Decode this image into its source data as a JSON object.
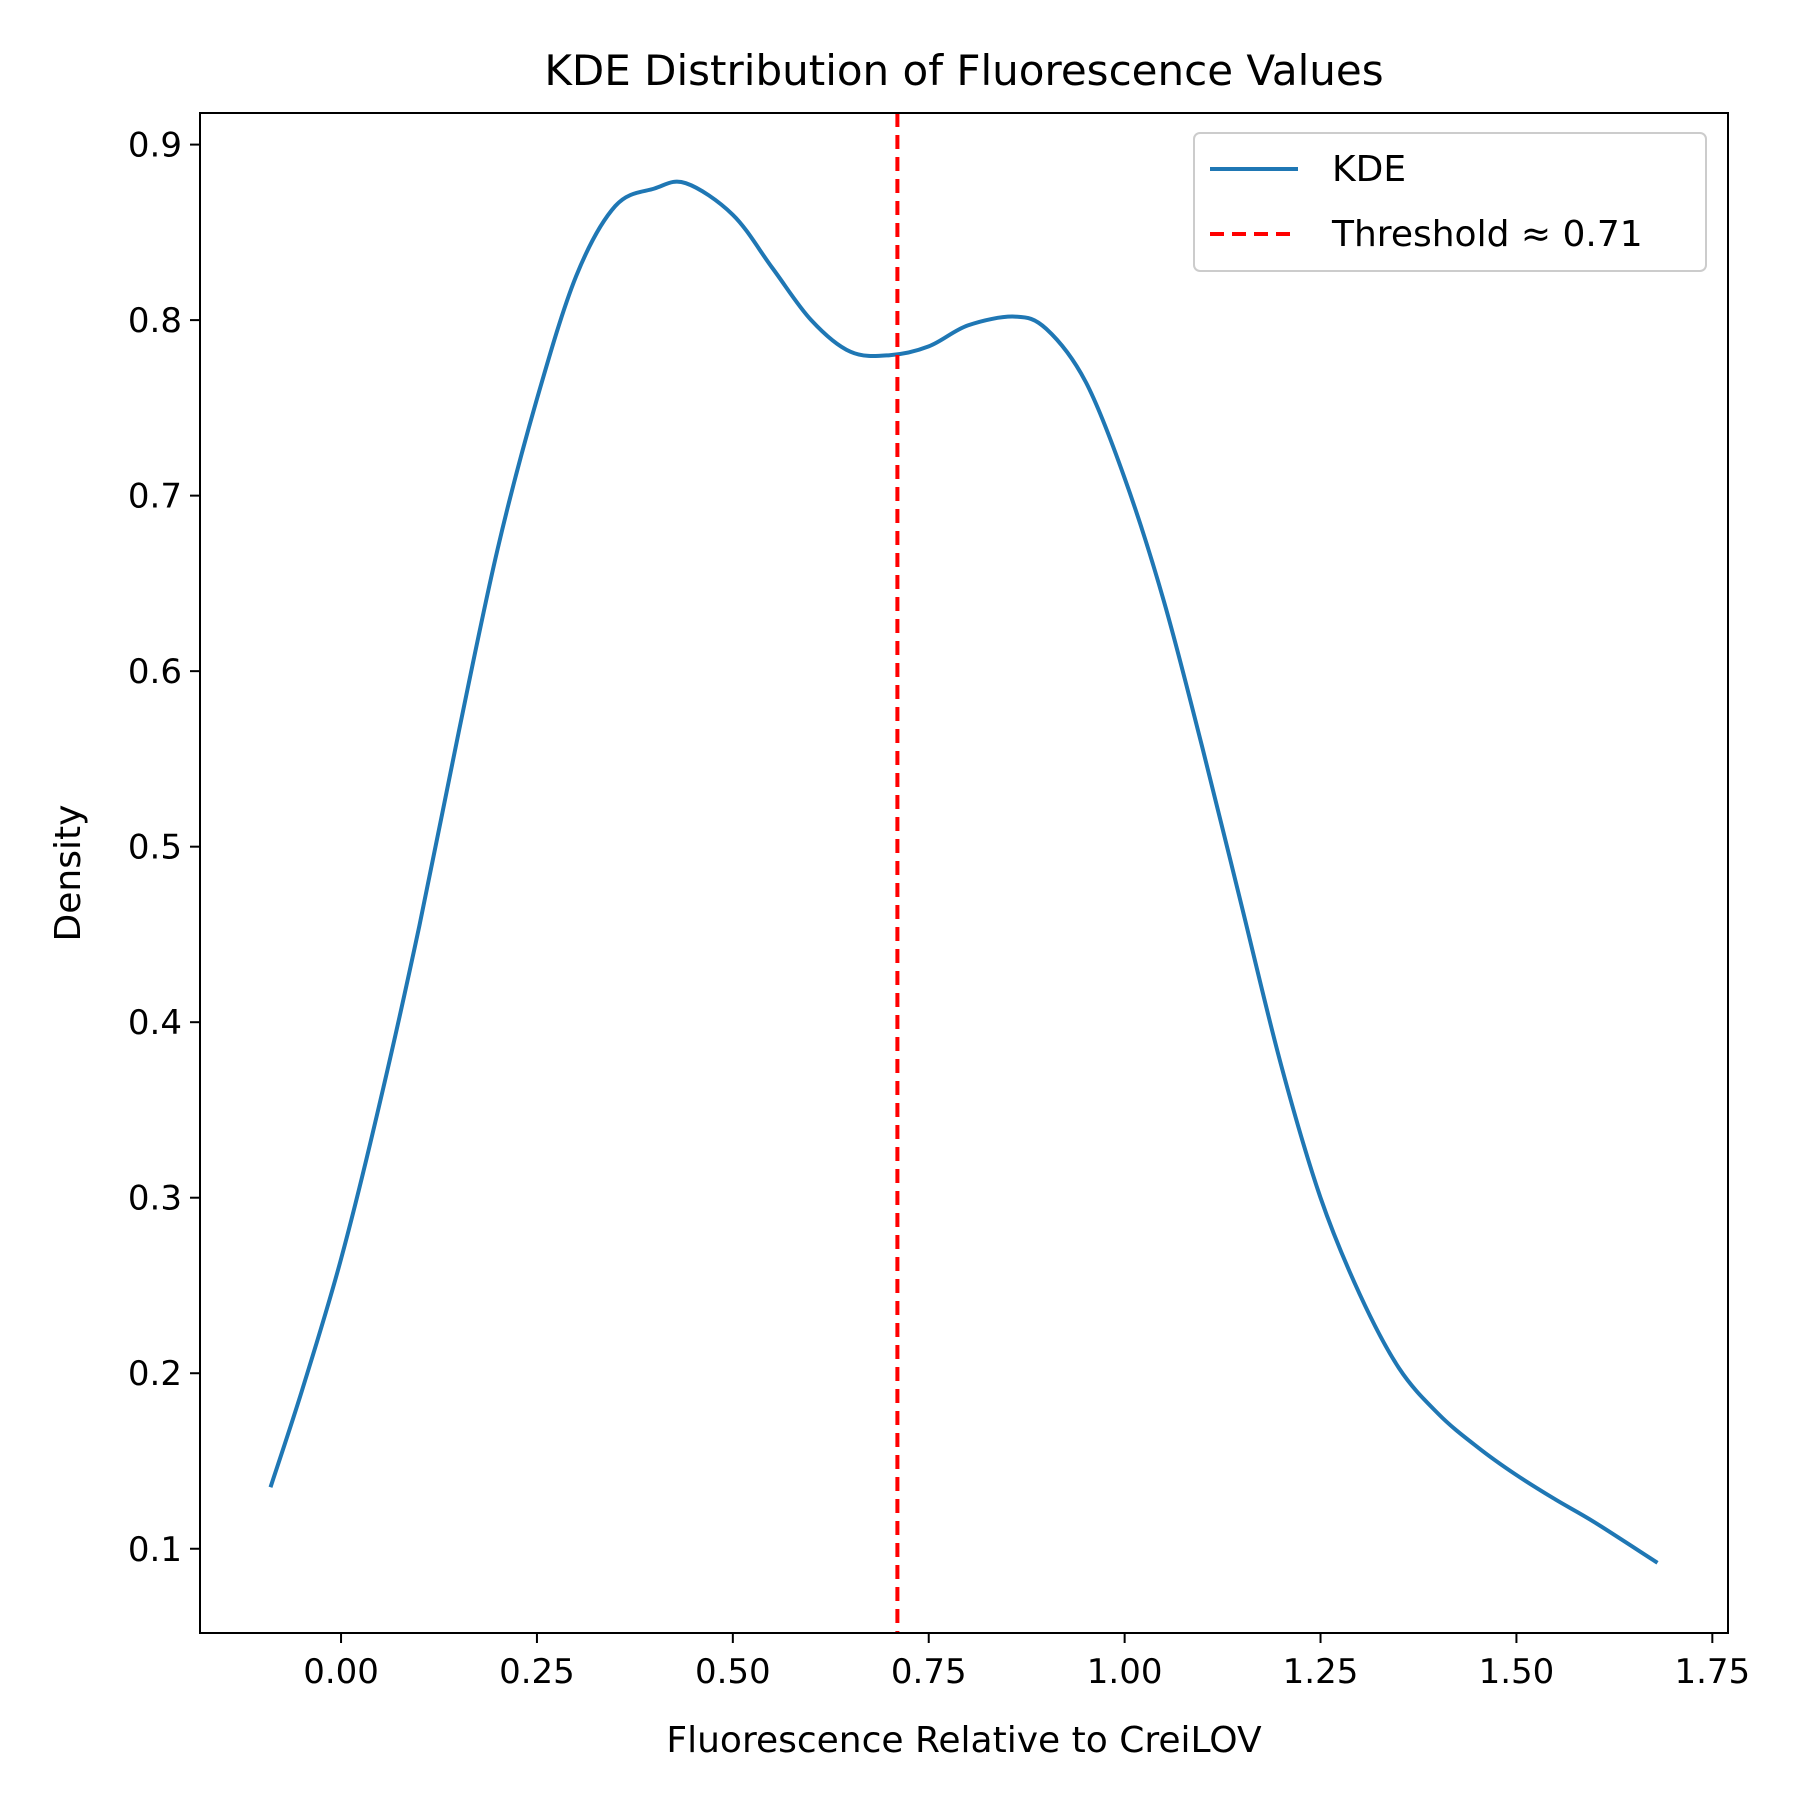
{
  "chart_data": {
    "type": "line",
    "title": "KDE Distribution of Fluorescence Values",
    "xlabel": "Fluorescence Relative to CreiLOV",
    "ylabel": "Density",
    "xlim": [
      -0.18,
      1.77
    ],
    "ylim": [
      0.052,
      0.918
    ],
    "xticks": [
      {
        "value": 0.0,
        "label": "0.00"
      },
      {
        "value": 0.25,
        "label": "0.25"
      },
      {
        "value": 0.5,
        "label": "0.50"
      },
      {
        "value": 0.75,
        "label": "0.75"
      },
      {
        "value": 1.0,
        "label": "1.00"
      },
      {
        "value": 1.25,
        "label": "1.25"
      },
      {
        "value": 1.5,
        "label": "1.50"
      },
      {
        "value": 1.75,
        "label": "1.75"
      }
    ],
    "yticks": [
      {
        "value": 0.1,
        "label": "0.1"
      },
      {
        "value": 0.2,
        "label": "0.2"
      },
      {
        "value": 0.3,
        "label": "0.3"
      },
      {
        "value": 0.4,
        "label": "0.4"
      },
      {
        "value": 0.5,
        "label": "0.5"
      },
      {
        "value": 0.6,
        "label": "0.6"
      },
      {
        "value": 0.7,
        "label": "0.7"
      },
      {
        "value": 0.8,
        "label": "0.8"
      },
      {
        "value": 0.9,
        "label": "0.9"
      }
    ],
    "grid": false,
    "legend_position": "top-right",
    "series": [
      {
        "name": "KDE",
        "color": "#1f77b4",
        "style": "solid",
        "x": [
          -0.09,
          -0.05,
          0.0,
          0.05,
          0.1,
          0.15,
          0.2,
          0.25,
          0.3,
          0.35,
          0.4,
          0.44,
          0.5,
          0.55,
          0.6,
          0.65,
          0.7,
          0.75,
          0.8,
          0.86,
          0.9,
          0.95,
          1.0,
          1.05,
          1.1,
          1.15,
          1.2,
          1.25,
          1.3,
          1.35,
          1.4,
          1.45,
          1.5,
          1.55,
          1.6,
          1.68
        ],
        "y": [
          0.135,
          0.19,
          0.265,
          0.355,
          0.455,
          0.565,
          0.67,
          0.755,
          0.825,
          0.865,
          0.875,
          0.878,
          0.86,
          0.83,
          0.8,
          0.782,
          0.78,
          0.785,
          0.797,
          0.802,
          0.795,
          0.765,
          0.71,
          0.64,
          0.555,
          0.465,
          0.375,
          0.3,
          0.245,
          0.203,
          0.177,
          0.158,
          0.142,
          0.128,
          0.115,
          0.092
        ]
      },
      {
        "name": "Threshold ≈ 0.71",
        "color": "#ff0000",
        "style": "dashed",
        "vline_x": 0.71
      }
    ]
  }
}
